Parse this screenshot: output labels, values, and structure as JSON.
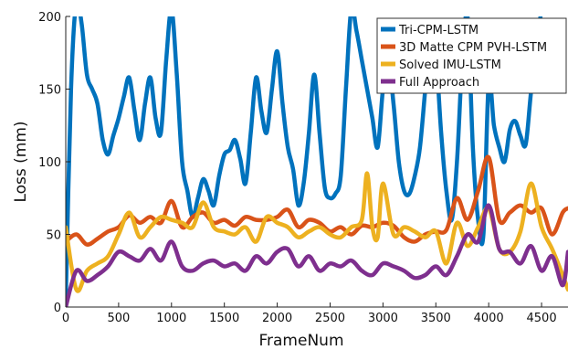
{
  "chart_data": {
    "type": "line",
    "xlabel": "FrameNum",
    "ylabel": "Loss (mm)",
    "xlim": [
      0,
      4750
    ],
    "ylim": [
      0,
      200
    ],
    "xticks": [
      0,
      500,
      1000,
      1500,
      2000,
      2500,
      3000,
      3500,
      4000,
      4500
    ],
    "yticks": [
      0,
      50,
      100,
      150,
      200
    ],
    "grid": false,
    "legend_position": "top-right",
    "series": [
      {
        "name": "Tri-CPM-LSTM",
        "color": "#0072BD",
        "x": [
          0,
          50,
          100,
          150,
          200,
          250,
          300,
          350,
          400,
          450,
          500,
          550,
          600,
          650,
          700,
          750,
          800,
          850,
          900,
          950,
          1000,
          1050,
          1100,
          1150,
          1200,
          1250,
          1300,
          1350,
          1400,
          1450,
          1500,
          1550,
          1600,
          1650,
          1700,
          1750,
          1800,
          1850,
          1900,
          1950,
          2000,
          2050,
          2100,
          2150,
          2200,
          2250,
          2300,
          2350,
          2400,
          2450,
          2500,
          2550,
          2600,
          2650,
          2700,
          2750,
          2800,
          2850,
          2900,
          2950,
          3000,
          3050,
          3100,
          3150,
          3200,
          3250,
          3300,
          3350,
          3400,
          3450,
          3500,
          3550,
          3600,
          3650,
          3700,
          3750,
          3800,
          3850,
          3900,
          3950,
          4000,
          4050,
          4100,
          4150,
          4200,
          4250,
          4300,
          4350,
          4400,
          4450,
          4500
        ],
        "y": [
          5,
          150,
          210,
          195,
          160,
          150,
          140,
          115,
          105,
          118,
          130,
          145,
          158,
          135,
          115,
          140,
          158,
          130,
          120,
          170,
          205,
          160,
          100,
          80,
          62,
          75,
          88,
          80,
          70,
          90,
          105,
          108,
          115,
          102,
          85,
          120,
          158,
          135,
          120,
          150,
          176,
          140,
          110,
          95,
          70,
          85,
          120,
          160,
          120,
          82,
          75,
          78,
          90,
          150,
          205,
          190,
          170,
          150,
          130,
          110,
          150,
          170,
          140,
          100,
          80,
          78,
          90,
          110,
          150,
          190,
          175,
          120,
          80,
          60,
          100,
          170,
          200,
          110,
          60,
          50,
          155,
          125,
          110,
          100,
          122,
          128,
          118,
          112,
          148,
          180,
          205
        ]
      },
      {
        "name": "3D Matte CPM PVH-LSTM",
        "color": "#D95319",
        "x": [
          0,
          100,
          200,
          300,
          400,
          500,
          600,
          700,
          800,
          900,
          1000,
          1100,
          1200,
          1300,
          1400,
          1500,
          1600,
          1700,
          1800,
          1900,
          2000,
          2100,
          2200,
          2300,
          2400,
          2500,
          2600,
          2700,
          2800,
          2900,
          3000,
          3100,
          3200,
          3300,
          3400,
          3500,
          3600,
          3700,
          3800,
          3900,
          4000,
          4100,
          4200,
          4300,
          4400,
          4500,
          4600,
          4700,
          4750
        ],
        "y": [
          45,
          50,
          43,
          47,
          52,
          55,
          63,
          58,
          62,
          58,
          73,
          55,
          62,
          65,
          58,
          60,
          56,
          62,
          60,
          60,
          62,
          67,
          55,
          60,
          58,
          52,
          55,
          50,
          56,
          55,
          58,
          56,
          48,
          45,
          50,
          52,
          53,
          75,
          60,
          80,
          103,
          60,
          65,
          70,
          65,
          68,
          50,
          65,
          68
        ]
      },
      {
        "name": "Solved IMU-LSTM",
        "color": "#EDB120",
        "x": [
          0,
          100,
          200,
          300,
          400,
          500,
          600,
          700,
          800,
          900,
          1000,
          1100,
          1200,
          1300,
          1400,
          1500,
          1600,
          1700,
          1800,
          1900,
          2000,
          2100,
          2200,
          2300,
          2400,
          2500,
          2600,
          2700,
          2800,
          2850,
          2900,
          2950,
          3000,
          3100,
          3200,
          3300,
          3400,
          3500,
          3600,
          3700,
          3800,
          3900,
          4000,
          4100,
          4200,
          4300,
          4400,
          4500,
          4600,
          4700,
          4750
        ],
        "y": [
          55,
          12,
          25,
          30,
          35,
          50,
          65,
          48,
          55,
          62,
          60,
          58,
          55,
          72,
          55,
          52,
          50,
          55,
          45,
          62,
          58,
          55,
          48,
          52,
          55,
          50,
          48,
          55,
          60,
          92,
          55,
          48,
          85,
          50,
          55,
          52,
          48,
          52,
          30,
          58,
          42,
          55,
          68,
          40,
          38,
          52,
          85,
          55,
          40,
          22,
          12
        ]
      },
      {
        "name": "Full Approach",
        "color": "#7E2F8E",
        "x": [
          0,
          100,
          200,
          300,
          400,
          500,
          600,
          700,
          800,
          900,
          1000,
          1100,
          1200,
          1300,
          1400,
          1500,
          1600,
          1700,
          1800,
          1900,
          2000,
          2100,
          2200,
          2300,
          2400,
          2500,
          2600,
          2700,
          2800,
          2900,
          3000,
          3100,
          3200,
          3300,
          3400,
          3500,
          3600,
          3700,
          3800,
          3900,
          4000,
          4100,
          4200,
          4300,
          4400,
          4500,
          4600,
          4700,
          4750
        ],
        "y": [
          0,
          25,
          18,
          22,
          28,
          38,
          35,
          32,
          40,
          32,
          45,
          28,
          25,
          30,
          32,
          28,
          30,
          25,
          35,
          30,
          38,
          40,
          28,
          35,
          25,
          30,
          28,
          32,
          25,
          22,
          30,
          28,
          25,
          20,
          22,
          28,
          22,
          35,
          50,
          45,
          70,
          40,
          38,
          30,
          42,
          25,
          35,
          15,
          38
        ]
      }
    ]
  }
}
